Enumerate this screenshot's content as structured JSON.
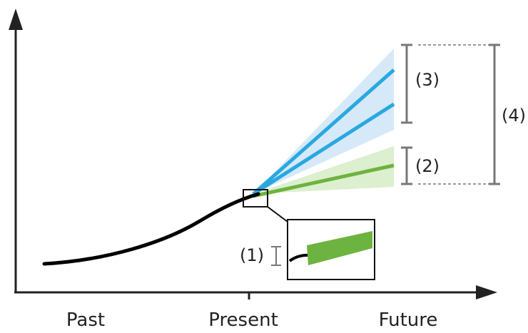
{
  "axis": {
    "x_ticks": [
      "Past",
      "Present",
      "Future"
    ]
  },
  "annotations": {
    "label_1": "(1)",
    "label_2": "(2)",
    "label_3": "(3)",
    "label_4": "(4)"
  },
  "colors": {
    "history": "#000000",
    "scenario_blue": "#29a8e0",
    "scenario_blue_band": "#d6e9f8",
    "scenario_green": "#6db33f",
    "scenario_green_band": "#dcefcf",
    "bracket": "#777777",
    "axis": "#222222"
  }
}
